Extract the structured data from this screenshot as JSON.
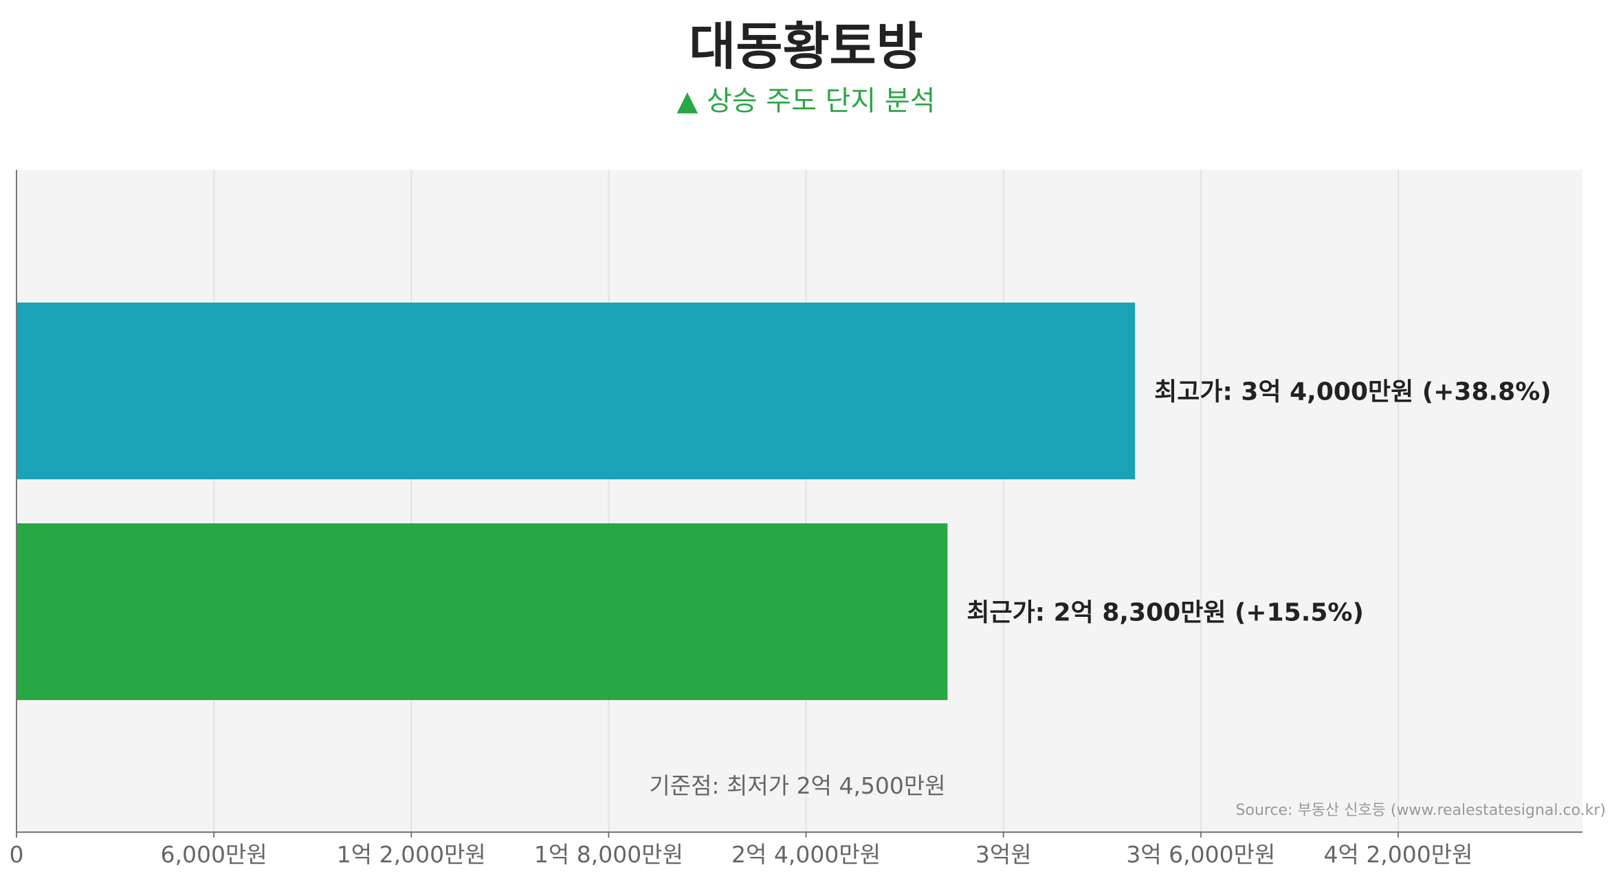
{
  "title": "대동황토방",
  "subtitle": "▲ 상승 주도 단지 분석",
  "source": "Source: 부동산 신호등 (www.realestatesignal.co.kr)",
  "baseline_note": "기준점: 최저가 2억 4,500만원",
  "colors": {
    "plot_background": "#f4f4f4",
    "highest_bar": "#19a2b8",
    "recent_bar": "#28a745",
    "subtitle": "#28a745",
    "title": "#222222",
    "grid": "#e2e2e2",
    "axis": "#777777"
  },
  "chart_data": {
    "type": "bar",
    "orientation": "horizontal",
    "title": "대동황토방",
    "subtitle": "▲ 상승 주도 단지 분석",
    "unit": "만원",
    "xlim": [
      0,
      47600
    ],
    "grid": true,
    "x_ticks": [
      {
        "value": 0,
        "label": "0"
      },
      {
        "value": 6000,
        "label": "6,000만원"
      },
      {
        "value": 12000,
        "label": "1억 2,000만원"
      },
      {
        "value": 18000,
        "label": "1억 8,000만원"
      },
      {
        "value": 24000,
        "label": "2억 4,000만원"
      },
      {
        "value": 30000,
        "label": "3억원"
      },
      {
        "value": 36000,
        "label": "3억 6,000만원"
      },
      {
        "value": 42000,
        "label": "4억 2,000만원"
      }
    ],
    "bars": [
      {
        "key": "highest",
        "value": 34000,
        "label": "최고가: 3억 4,000만원 (+38.8%)",
        "color": "#19a2b8"
      },
      {
        "key": "recent",
        "value": 28300,
        "label": "최근가: 2억 8,300만원 (+15.5%)",
        "color": "#28a745"
      }
    ]
  }
}
